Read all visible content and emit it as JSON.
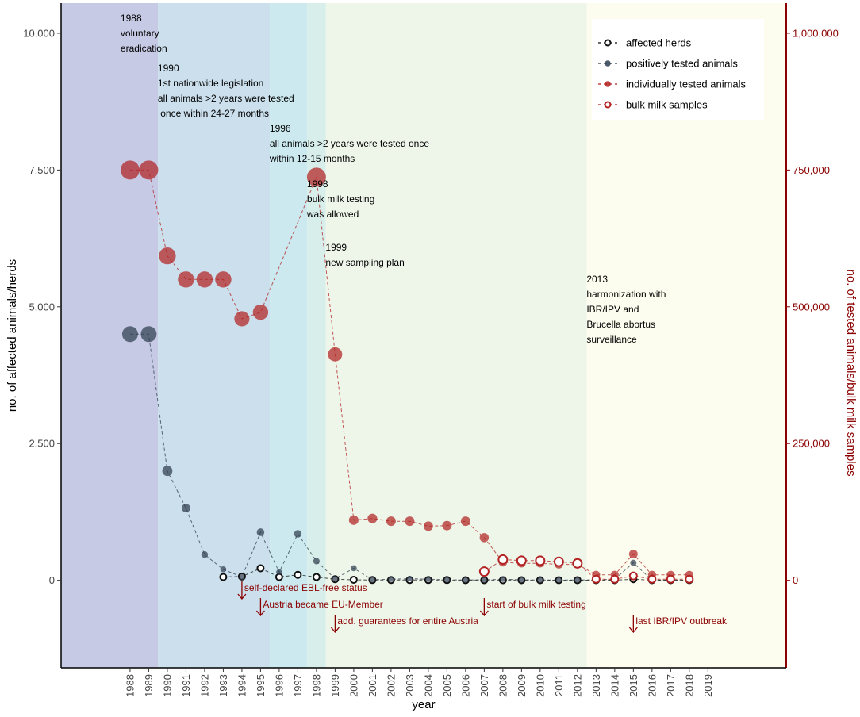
{
  "chart_data": {
    "type": "line",
    "x_label": "year",
    "y_left_label": "no. of affected animals/herds",
    "y_right_label": "no. of tested animals/bulk milk samples",
    "x_ticks": [
      1988,
      1989,
      1990,
      1991,
      1992,
      1993,
      1994,
      1995,
      1996,
      1997,
      1998,
      1999,
      2000,
      2001,
      2002,
      2003,
      2004,
      2005,
      2006,
      2007,
      2008,
      2009,
      2010,
      2011,
      2012,
      2013,
      2014,
      2015,
      2016,
      2017,
      2018,
      2019
    ],
    "x_range": [
      1984.3,
      2023.2
    ],
    "y_left_range": [
      -1600,
      10550
    ],
    "y_right_range": [
      -160000,
      1055000
    ],
    "y_left_ticks": [
      0,
      2500,
      5000,
      7500,
      10000
    ],
    "y_left_tick_labels": [
      "0",
      "2,500",
      "5,000",
      "7,500",
      "10,000"
    ],
    "y_right_ticks": [
      0,
      250000,
      500000,
      750000,
      1000000
    ],
    "y_right_tick_labels": [
      "0",
      "250,000",
      "500,000",
      "750,000",
      "1,000,000"
    ],
    "periods": [
      {
        "from": 1984.3,
        "to": 1989.5,
        "color": "#c6cae4"
      },
      {
        "from": 1989.5,
        "to": 1995.5,
        "color": "#cbdfec"
      },
      {
        "from": 1995.5,
        "to": 1997.5,
        "color": "#cbe9ef"
      },
      {
        "from": 1997.5,
        "to": 1998.5,
        "color": "#d7eeea"
      },
      {
        "from": 1998.5,
        "to": 2012.5,
        "color": "#eef6ea"
      },
      {
        "from": 2012.5,
        "to": 2023.2,
        "color": "#fdfdef"
      }
    ],
    "series": [
      {
        "name": "affected herds",
        "axis": "left",
        "color": "#111111",
        "open": true,
        "x": [
          1993,
          1994,
          1995,
          1996,
          1997,
          1998,
          1999,
          2000,
          2001,
          2002,
          2003,
          2004,
          2005,
          2006,
          2007,
          2008,
          2009,
          2010,
          2011,
          2012,
          2013,
          2014,
          2015,
          2016,
          2017,
          2018
        ],
        "y": [
          60,
          70,
          220,
          60,
          100,
          60,
          20,
          10,
          5,
          5,
          5,
          5,
          5,
          3,
          3,
          3,
          3,
          3,
          2,
          2,
          2,
          2,
          20,
          2,
          2,
          2
        ]
      },
      {
        "name": "positively tested animals",
        "axis": "left",
        "color": "#2f3f4f",
        "open": false,
        "x": [
          1988,
          1989,
          1990,
          1991,
          1992,
          1993,
          1994,
          1995,
          1996,
          1997,
          1998,
          1999,
          2000,
          2001,
          2002,
          2003,
          2004,
          2005,
          2006,
          2007,
          2008,
          2009,
          2010,
          2011,
          2012,
          2013,
          2014,
          2015,
          2016,
          2017,
          2018
        ],
        "y": [
          4500,
          4500,
          2000,
          1320,
          470,
          200,
          60,
          880,
          150,
          850,
          350,
          30,
          220,
          10,
          20,
          30,
          20,
          10,
          5,
          10,
          20,
          10,
          5,
          5,
          5,
          10,
          20,
          320,
          5,
          5,
          5
        ]
      },
      {
        "name": "individually tested animals",
        "axis": "right",
        "color": "#b22222",
        "open": false,
        "x": [
          1988,
          1989,
          1990,
          1991,
          1992,
          1993,
          1994,
          1995,
          1998,
          1999,
          2000,
          2001,
          2002,
          2003,
          2004,
          2005,
          2006,
          2007,
          2008,
          2009,
          2010,
          2011,
          2012,
          2013,
          2014,
          2015,
          2016,
          2017,
          2018
        ],
        "y": [
          750000,
          750000,
          593000,
          550000,
          550000,
          550000,
          478000,
          490000,
          737000,
          413000,
          110000,
          113000,
          108000,
          108000,
          99000,
          100000,
          108000,
          78000,
          33000,
          31000,
          31000,
          29000,
          29000,
          10000,
          10000,
          48000,
          10000,
          10000,
          10000
        ]
      },
      {
        "name": "bulk milk samples",
        "axis": "right",
        "color": "#b22222",
        "open": true,
        "x": [
          2007,
          2008,
          2009,
          2010,
          2011,
          2012,
          2013,
          2014,
          2015,
          2016,
          2017,
          2018
        ],
        "y": [
          16000,
          38000,
          36000,
          36000,
          34000,
          31000,
          2000,
          2000,
          8000,
          2000,
          2000,
          2000
        ]
      }
    ],
    "annotations": [
      {
        "year": 1988,
        "lines": [
          "1988",
          "voluntary",
          "eradication"
        ]
      },
      {
        "year": 1990,
        "lines": [
          "1990",
          "1st nationwide legislation",
          "all animals >2 years were tested",
          " once within 24-27 months"
        ]
      },
      {
        "year": 1996,
        "lines": [
          "1996",
          "all animals >2 years were tested once",
          "within 12-15 months"
        ]
      },
      {
        "year": 1998,
        "lines": [
          "1998",
          "bulk milk testing",
          "was allowed"
        ]
      },
      {
        "year": 1999,
        "lines": [
          "1999",
          "new sampling plan"
        ]
      },
      {
        "year": 2013,
        "lines": [
          "2013",
          "harmonization with",
          "IBR/IPV and",
          "Brucella abortus",
          "surveillance"
        ]
      }
    ],
    "events": [
      {
        "year": 1994,
        "label": "self-declared EBL-free status"
      },
      {
        "year": 1995,
        "label": "Austria became EU-Member"
      },
      {
        "year": 1999,
        "label": "add. guarantees for entire Austria"
      },
      {
        "year": 2007,
        "label": "start of bulk milk testing"
      },
      {
        "year": 2015,
        "label": "last IBR/IPV outbreak"
      }
    ]
  }
}
